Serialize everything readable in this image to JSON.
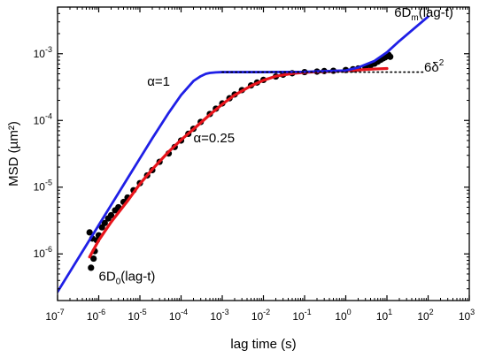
{
  "chart_data": {
    "type": "line",
    "xscale": "log",
    "yscale": "log",
    "xlabel": "lag time (s)",
    "ylabel": "MSD (µm²)",
    "xlim": [
      1e-07,
      1000
    ],
    "ylim": [
      2e-07,
      0.005
    ],
    "x_ticks": [
      {
        "value": 1e-07,
        "base": "10",
        "exp": "-7"
      },
      {
        "value": 1e-06,
        "base": "10",
        "exp": "-6"
      },
      {
        "value": 1e-05,
        "base": "10",
        "exp": "-5"
      },
      {
        "value": 0.0001,
        "base": "10",
        "exp": "-4"
      },
      {
        "value": 0.001,
        "base": "10",
        "exp": "-3"
      },
      {
        "value": 0.01,
        "base": "10",
        "exp": "-2"
      },
      {
        "value": 0.1,
        "base": "10",
        "exp": "-1"
      },
      {
        "value": 1,
        "base": "10",
        "exp": "0"
      },
      {
        "value": 10,
        "base": "10",
        "exp": "1"
      },
      {
        "value": 100,
        "base": "10",
        "exp": "2"
      },
      {
        "value": 1000,
        "base": "10",
        "exp": "3"
      }
    ],
    "y_ticks": [
      {
        "value": 1e-06,
        "base": "10",
        "exp": "-6"
      },
      {
        "value": 1e-05,
        "base": "10",
        "exp": "-5"
      },
      {
        "value": 0.0001,
        "base": "10",
        "exp": "-4"
      },
      {
        "value": 0.001,
        "base": "10",
        "exp": "-3"
      }
    ],
    "series": [
      {
        "kind": "scatter",
        "color": "#000000",
        "x": [
          6e-07,
          6.5e-07,
          7e-07,
          7.5e-07,
          8e-07,
          9e-07,
          1e-06,
          1.2e-06,
          1.4e-06,
          1.7e-06,
          2e-06,
          2.5e-06,
          3e-06,
          4e-06,
          5e-06,
          7e-06,
          1e-05,
          1.5e-05,
          2e-05,
          3e-05,
          5e-05,
          7e-05,
          0.0001,
          0.00015,
          0.0002,
          0.0003,
          0.0005,
          0.0007,
          0.001,
          0.0015,
          0.002,
          0.003,
          0.005,
          0.007,
          0.01,
          0.02,
          0.03,
          0.05,
          0.1,
          0.2,
          0.3,
          0.5,
          1,
          1.5,
          2,
          3,
          4,
          5,
          6,
          7,
          8,
          9,
          10,
          11,
          12
        ],
        "y": [
          2.1e-06,
          6.2e-07,
          1.7e-06,
          8.5e-07,
          1.1e-06,
          1.6e-06,
          1.9e-06,
          2.5e-06,
          2.9e-06,
          3.4e-06,
          3.8e-06,
          4.5e-06,
          5e-06,
          6e-06,
          7e-06,
          9e-06,
          1.15e-05,
          1.5e-05,
          1.8e-05,
          2.4e-05,
          3.2e-05,
          4e-05,
          5e-05,
          6.3e-05,
          7.5e-05,
          9.5e-05,
          0.000125,
          0.00015,
          0.00018,
          0.000215,
          0.000245,
          0.000285,
          0.000335,
          0.00037,
          0.000405,
          0.000455,
          0.000485,
          0.00051,
          0.00053,
          0.00054,
          0.00055,
          0.000555,
          0.00057,
          0.000585,
          0.0006,
          0.00063,
          0.00067,
          0.00071,
          0.00076,
          0.00081,
          0.00085,
          0.00088,
          0.00092,
          0.00096,
          0.0009
        ]
      },
      {
        "kind": "line",
        "color": "#e8141b",
        "x": [
          6e-07,
          1e-06,
          2e-06,
          5e-06,
          1e-05,
          2e-05,
          5e-05,
          0.0001,
          0.0002,
          0.0005,
          0.001,
          0.002,
          0.005,
          0.01,
          0.02,
          0.05,
          0.1,
          0.2,
          0.5,
          1,
          2,
          5,
          10
        ],
        "y": [
          9e-07,
          1.6e-06,
          3e-06,
          6.2e-06,
          1.12e-05,
          1.85e-05,
          3.4e-05,
          5.1e-05,
          7.4e-05,
          0.000122,
          0.000175,
          0.00024,
          0.00033,
          0.0004,
          0.00046,
          0.000505,
          0.000525,
          0.000535,
          0.000545,
          0.000555,
          0.00057,
          0.00059,
          0.0006
        ]
      },
      {
        "kind": "line",
        "color": "#1f1fe6",
        "x": [
          1e-07,
          2e-07,
          5e-07,
          1e-06,
          2e-06,
          5e-06,
          1e-05,
          2e-05,
          5e-05,
          0.0001,
          0.0002,
          0.0003,
          0.0004,
          0.0005,
          0.0007,
          0.001,
          0.01,
          0.1,
          1,
          2,
          5,
          10,
          20,
          50,
          100
        ],
        "y": [
          2.7e-07,
          5.4e-07,
          1.35e-06,
          2.7e-06,
          5.4e-06,
          1.35e-05,
          2.7e-05,
          5.4e-05,
          0.00013,
          0.00024,
          0.00039,
          0.00046,
          0.0005,
          0.000515,
          0.000525,
          0.00053,
          0.00053,
          0.000535,
          0.00056,
          0.00062,
          0.00078,
          0.00105,
          0.00155,
          0.0025,
          0.0036
        ]
      },
      {
        "kind": "dotted",
        "color": "#000000",
        "x": [
          0.001,
          80
        ],
        "y": [
          0.00053,
          0.00053
        ]
      }
    ],
    "annotations": [
      {
        "id": "alpha1",
        "text": "α=1",
        "x": 1.5e-05,
        "y": 0.00033
      },
      {
        "id": "alpha025",
        "text": "α=0.25",
        "x": 0.0002,
        "y": 4.7e-05
      },
      {
        "id": "delta",
        "main": "6δ",
        "sup": "2",
        "x": 80,
        "y": 0.00054
      },
      {
        "id": "dm",
        "main": "6D",
        "sub": "m",
        "rest": "(lag-t)",
        "x": 15,
        "y": 0.0036
      },
      {
        "id": "d0",
        "main": "6D",
        "sub": "0",
        "rest": "(lag-t)",
        "x": 1e-06,
        "y": 4e-07
      }
    ],
    "grid": false,
    "legend": "none"
  }
}
